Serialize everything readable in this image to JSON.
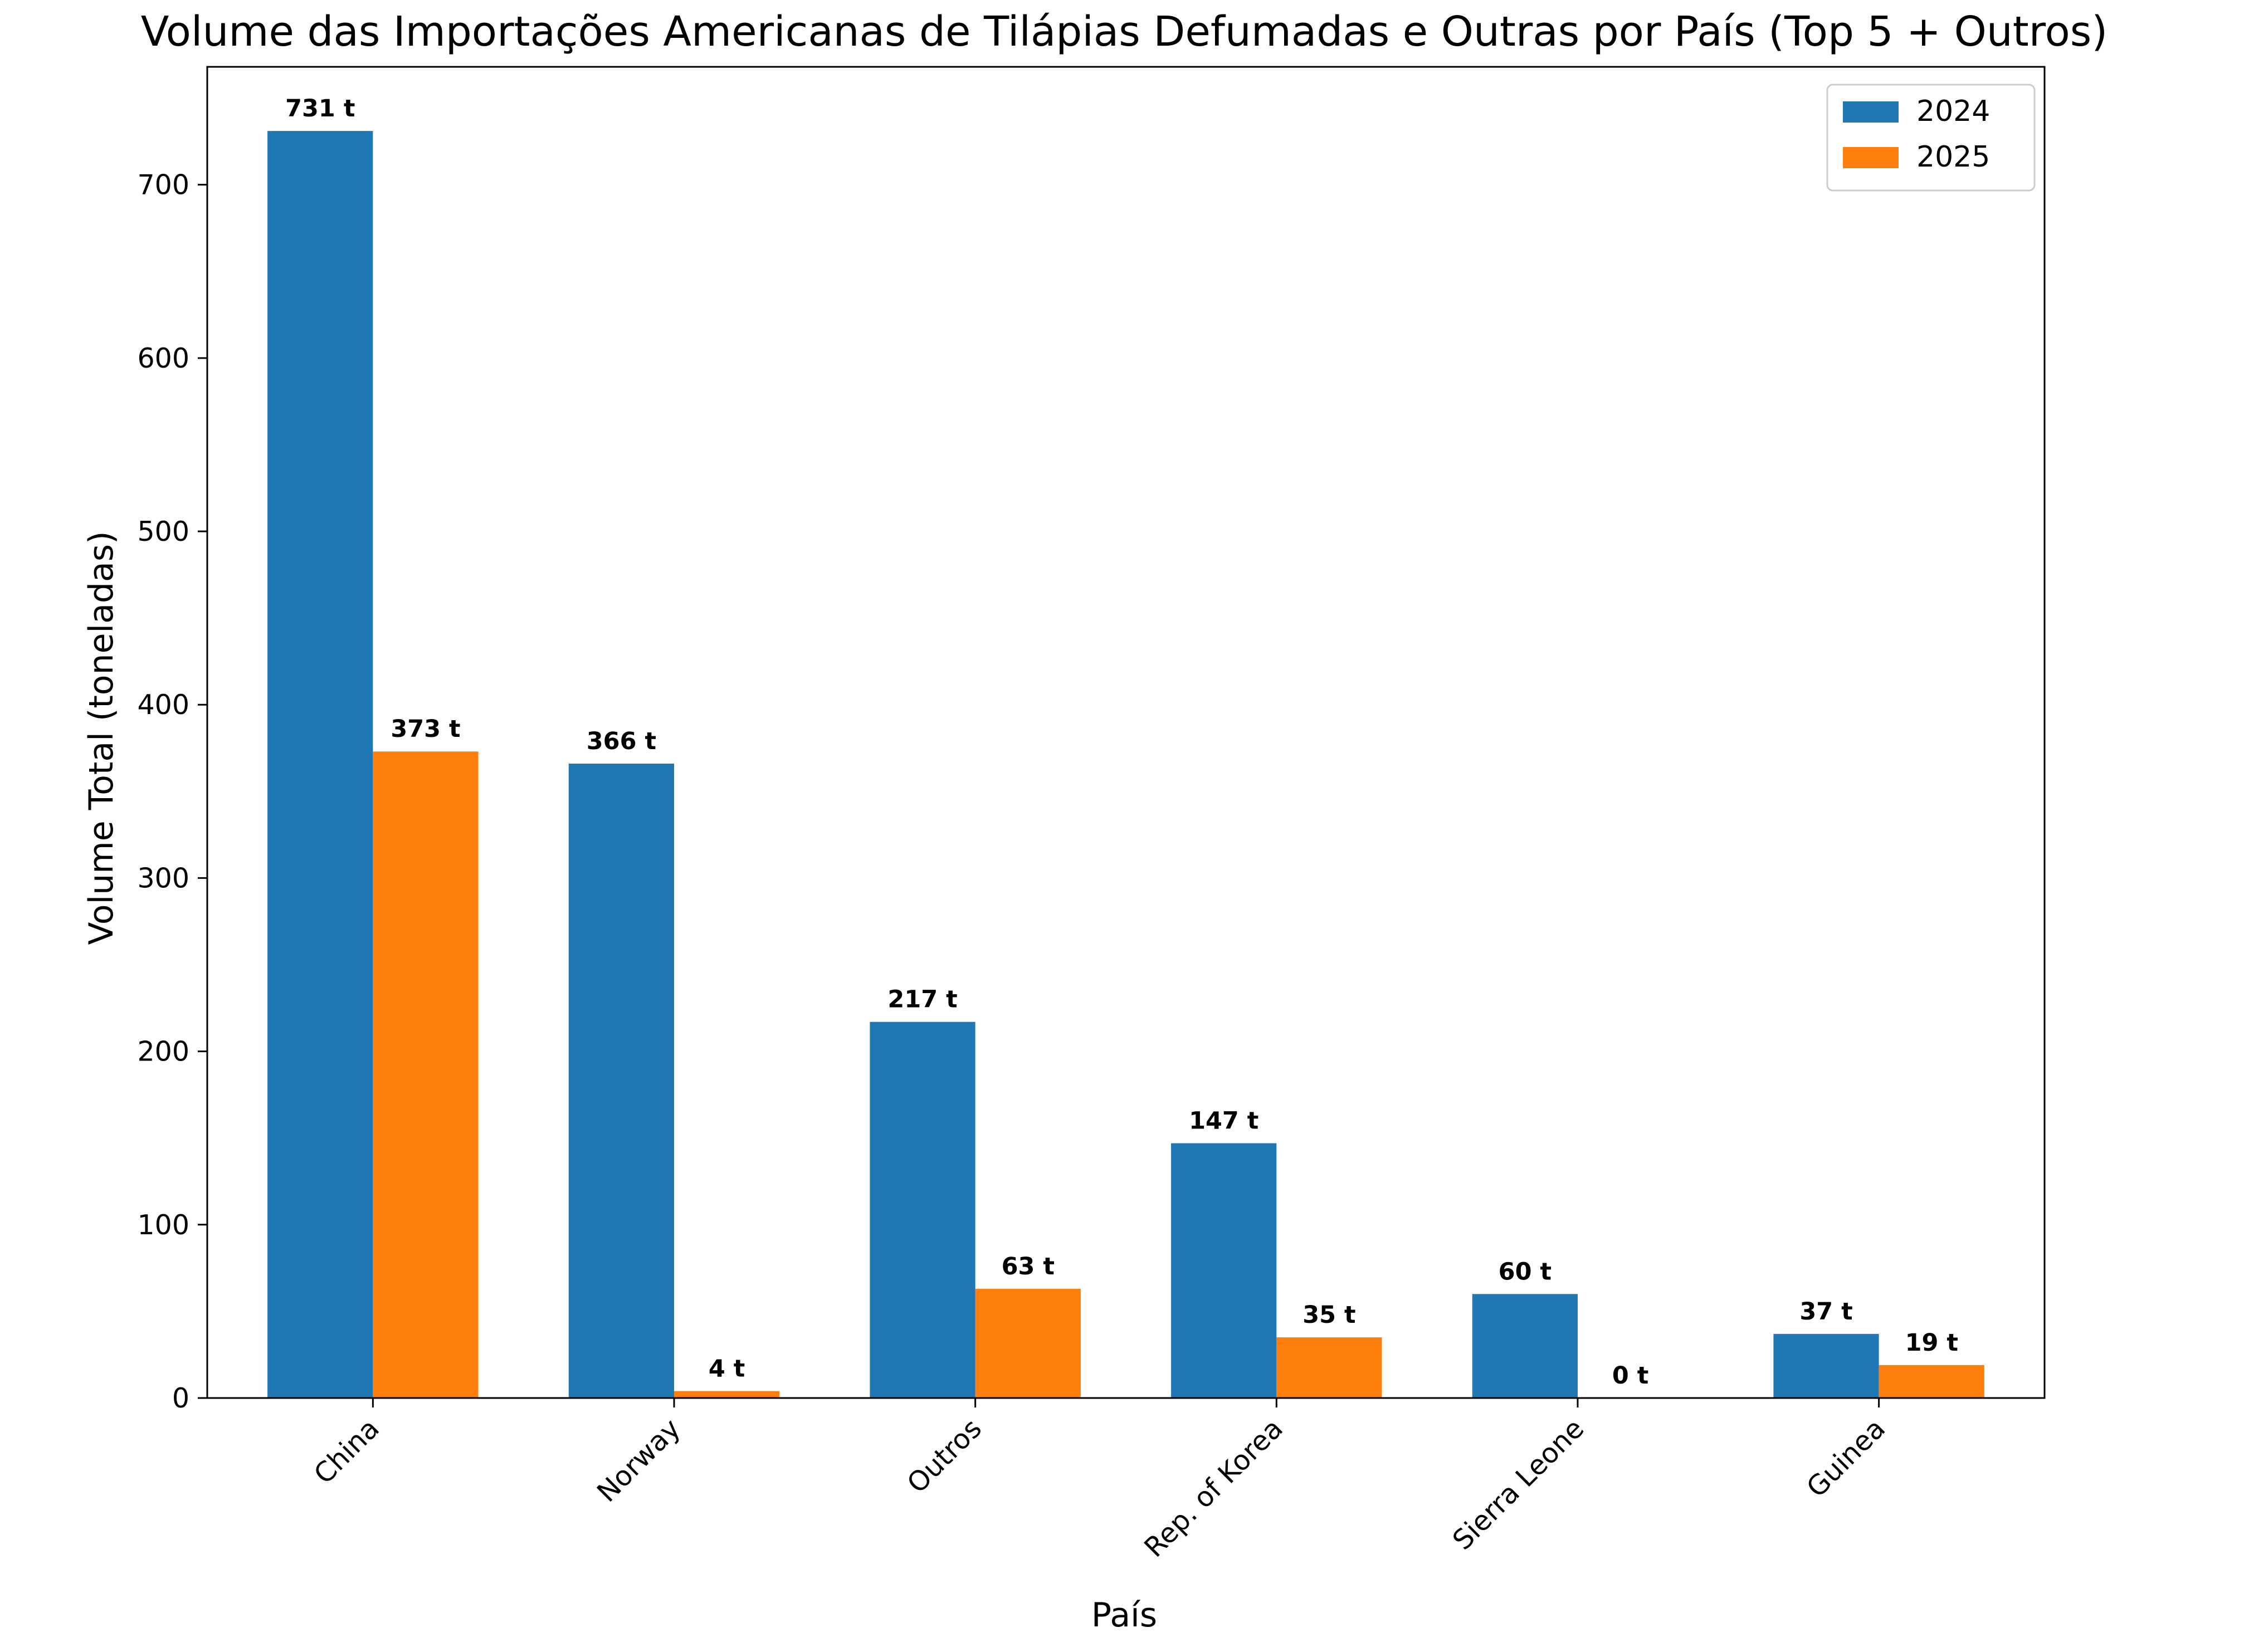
{
  "chart_data": {
    "type": "bar",
    "title": "Volume das Importações Americanas de Tilápias Defumadas e Outras por País (Top 5 + Outros)",
    "xlabel": "País",
    "ylabel": "Volume Total (toneladas)",
    "categories": [
      "China",
      "Norway",
      "Outros",
      "Rep. of Korea",
      "Sierra Leone",
      "Guinea"
    ],
    "series": [
      {
        "name": "2024",
        "color": "#1f77b4",
        "values": [
          731,
          366,
          217,
          147,
          60,
          37
        ],
        "labels": [
          "731 t",
          "366 t",
          "217 t",
          "147 t",
          "60 t",
          "37 t"
        ]
      },
      {
        "name": "2025",
        "color": "#ff7f0e",
        "values": [
          373,
          4,
          63,
          35,
          0,
          19
        ],
        "labels": [
          "373 t",
          "4 t",
          "63 t",
          "35 t",
          "0 t",
          "19 t"
        ]
      }
    ],
    "ylim": [
      0,
      768
    ],
    "yticks": [
      0,
      100,
      200,
      300,
      400,
      500,
      600,
      700
    ],
    "ytick_labels": [
      "0",
      "100",
      "200",
      "300",
      "400",
      "500",
      "600",
      "700"
    ],
    "grid": false,
    "legend_position": "top-right"
  }
}
